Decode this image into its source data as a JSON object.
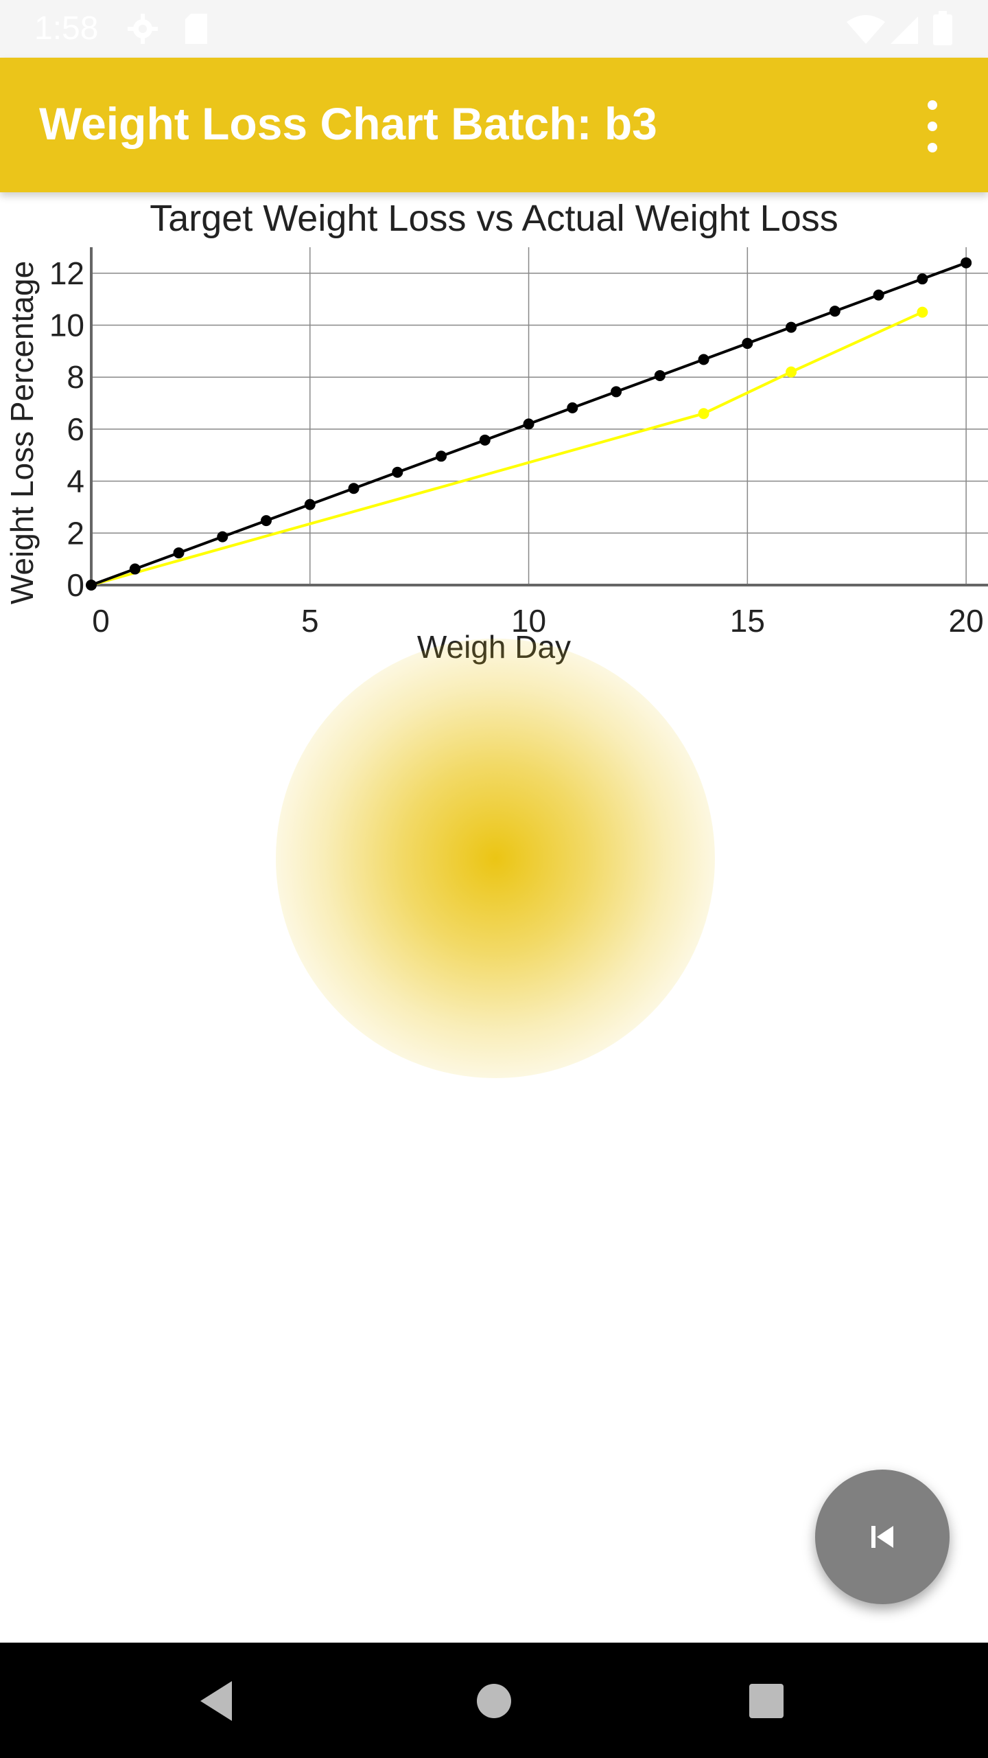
{
  "status_bar": {
    "time": "1:58",
    "icons": [
      "gear-icon",
      "sd-card-icon",
      "wifi-icon",
      "signal-icon",
      "battery-icon"
    ]
  },
  "app_bar": {
    "title": "Weight Loss Chart Batch: b3",
    "menu_icon": "overflow-menu-icon",
    "background": "#ebc51a"
  },
  "chart_data": {
    "type": "line",
    "title": "Target Weight Loss vs Actual Weight Loss",
    "xlabel": "Weigh Day",
    "ylabel": "Weight Loss Percentage",
    "xlim": [
      0,
      20.5
    ],
    "ylim": [
      0,
      13
    ],
    "x_ticks": [
      "0",
      "5",
      "10",
      "15",
      "20"
    ],
    "y_ticks": [
      "0",
      "2",
      "4",
      "6",
      "8",
      "10",
      "12"
    ],
    "grid": true,
    "series": [
      {
        "color": "#000000",
        "x": [
          0,
          1,
          2,
          3,
          4,
          5,
          6,
          7,
          8,
          9,
          10,
          11,
          12,
          13,
          14,
          15,
          16,
          17,
          18,
          19,
          20
        ],
        "y": [
          0,
          0.62,
          1.24,
          1.86,
          2.48,
          3.1,
          3.72,
          4.34,
          4.96,
          5.58,
          6.2,
          6.82,
          7.44,
          8.06,
          8.68,
          9.3,
          9.92,
          10.54,
          11.16,
          11.78,
          12.4
        ]
      },
      {
        "color": "#ffff00",
        "x": [
          0,
          14,
          16,
          19
        ],
        "y": [
          0,
          6.6,
          8.2,
          10.5
        ]
      }
    ]
  },
  "fab": {
    "icon": "skip-previous-icon",
    "color": "#808080"
  },
  "nav_bar": {
    "buttons": [
      "back-icon",
      "home-icon",
      "recents-icon"
    ]
  }
}
